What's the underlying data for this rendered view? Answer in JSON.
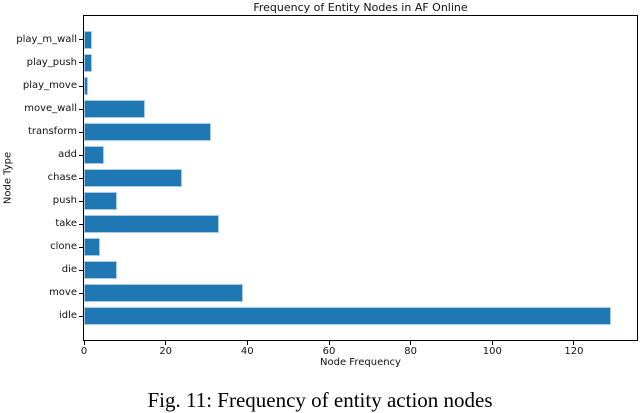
{
  "figure": {
    "caption": "Fig. 11: Frequency of entity action nodes"
  },
  "chart_data": {
    "type": "bar",
    "orientation": "horizontal",
    "title": "Frequency of Entity Nodes in AF Online",
    "xlabel": "Node Frequency",
    "ylabel": "Node Type",
    "categories_top_to_bottom": [
      "play_m_wall",
      "play_push",
      "play_move",
      "move_wall",
      "transform",
      "add",
      "chase",
      "push",
      "take",
      "clone",
      "die",
      "move",
      "idle"
    ],
    "values": [
      2,
      2,
      1,
      15,
      31,
      5,
      24,
      8,
      33,
      4,
      8,
      39,
      129
    ],
    "xticks": [
      0,
      20,
      40,
      60,
      80,
      100,
      120
    ],
    "xlim": [
      0,
      135.45
    ],
    "bar_height_fraction": 0.8,
    "bar_color": "#1f77b4",
    "bar_edge_color": "#a9cbe4",
    "grid": false,
    "legend": "none"
  }
}
